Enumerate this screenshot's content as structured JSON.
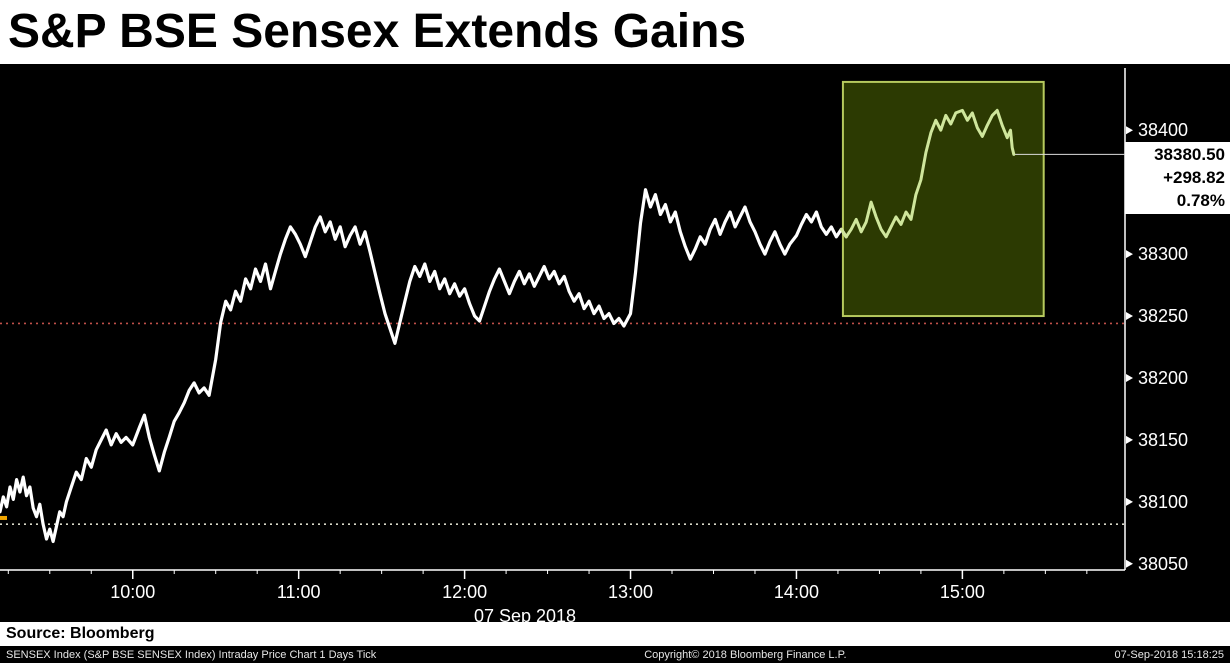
{
  "header": {
    "title": "S&P BSE Sensex Extends Gains"
  },
  "chart_data": {
    "type": "line",
    "title": "S&P BSE Sensex Extends Gains",
    "instrument": "SENSEX Index",
    "x_unit": "hour_of_day",
    "x_range": [
      9.2,
      15.98
    ],
    "y_range": [
      38045,
      38447
    ],
    "y_ticks": [
      38400,
      38300,
      38250,
      38200,
      38150,
      38100,
      38050
    ],
    "x_ticks": [
      {
        "label": "10:00",
        "h": 10
      },
      {
        "label": "11:00",
        "h": 11
      },
      {
        "label": "12:00",
        "h": 12
      },
      {
        "label": "13:00",
        "h": 13
      },
      {
        "label": "14:00",
        "h": 14
      },
      {
        "label": "15:00",
        "h": 15
      }
    ],
    "date_label": "07 Sep 2018",
    "grid": false,
    "legend": "none",
    "line_color": "#ffffff",
    "highlight_region": {
      "t0": 14.28,
      "t1": 15.49,
      "p0": 38250,
      "p1": 38439,
      "fill": "#2c3a02",
      "stroke": "#b6c95e",
      "line_color": "#cfe69c"
    },
    "reference_lines": [
      {
        "value": 38244,
        "color": "#c0504a",
        "style": "dotted"
      },
      {
        "value": 38082,
        "color": "#d8d8c8",
        "style": "dotted"
      }
    ],
    "open_marker": {
      "value": 38087,
      "color": "#f0a500"
    },
    "last_price_line": {
      "value": 38380.5,
      "color": "#dddddd"
    },
    "quote": {
      "last": "38380.50",
      "change": "+298.82",
      "pct_change": "0.78%"
    },
    "series": [
      {
        "name": "SENSEX Index Intraday Price",
        "color": "#ffffff",
        "points": [
          [
            9.2,
            38092
          ],
          [
            9.22,
            38104
          ],
          [
            9.24,
            38096
          ],
          [
            9.26,
            38112
          ],
          [
            9.28,
            38102
          ],
          [
            9.3,
            38118
          ],
          [
            9.32,
            38108
          ],
          [
            9.34,
            38120
          ],
          [
            9.36,
            38105
          ],
          [
            9.38,
            38112
          ],
          [
            9.4,
            38095
          ],
          [
            9.42,
            38088
          ],
          [
            9.44,
            38098
          ],
          [
            9.46,
            38082
          ],
          [
            9.48,
            38070
          ],
          [
            9.5,
            38078
          ],
          [
            9.52,
            38068
          ],
          [
            9.54,
            38080
          ],
          [
            9.56,
            38092
          ],
          [
            9.58,
            38088
          ],
          [
            9.6,
            38100
          ],
          [
            9.63,
            38112
          ],
          [
            9.66,
            38124
          ],
          [
            9.69,
            38118
          ],
          [
            9.72,
            38135
          ],
          [
            9.75,
            38128
          ],
          [
            9.78,
            38142
          ],
          [
            9.81,
            38150
          ],
          [
            9.84,
            38158
          ],
          [
            9.87,
            38146
          ],
          [
            9.9,
            38155
          ],
          [
            9.93,
            38148
          ],
          [
            9.96,
            38152
          ],
          [
            10.0,
            38146
          ],
          [
            10.04,
            38160
          ],
          [
            10.07,
            38170
          ],
          [
            10.1,
            38152
          ],
          [
            10.13,
            38138
          ],
          [
            10.16,
            38125
          ],
          [
            10.19,
            38140
          ],
          [
            10.22,
            38152
          ],
          [
            10.25,
            38165
          ],
          [
            10.28,
            38172
          ],
          [
            10.31,
            38180
          ],
          [
            10.34,
            38190
          ],
          [
            10.37,
            38196
          ],
          [
            10.4,
            38188
          ],
          [
            10.43,
            38192
          ],
          [
            10.46,
            38186
          ],
          [
            10.5,
            38215
          ],
          [
            10.53,
            38245
          ],
          [
            10.56,
            38262
          ],
          [
            10.59,
            38255
          ],
          [
            10.62,
            38270
          ],
          [
            10.65,
            38262
          ],
          [
            10.68,
            38280
          ],
          [
            10.71,
            38272
          ],
          [
            10.74,
            38288
          ],
          [
            10.77,
            38278
          ],
          [
            10.8,
            38292
          ],
          [
            10.83,
            38272
          ],
          [
            10.86,
            38286
          ],
          [
            10.89,
            38300
          ],
          [
            10.92,
            38312
          ],
          [
            10.95,
            38322
          ],
          [
            10.98,
            38316
          ],
          [
            11.01,
            38308
          ],
          [
            11.04,
            38298
          ],
          [
            11.07,
            38310
          ],
          [
            11.1,
            38322
          ],
          [
            11.13,
            38330
          ],
          [
            11.16,
            38318
          ],
          [
            11.19,
            38326
          ],
          [
            11.22,
            38312
          ],
          [
            11.25,
            38322
          ],
          [
            11.28,
            38306
          ],
          [
            11.31,
            38315
          ],
          [
            11.34,
            38322
          ],
          [
            11.37,
            38308
          ],
          [
            11.4,
            38318
          ],
          [
            11.43,
            38302
          ],
          [
            11.46,
            38285
          ],
          [
            11.49,
            38268
          ],
          [
            11.52,
            38252
          ],
          [
            11.55,
            38240
          ],
          [
            11.58,
            38228
          ],
          [
            11.61,
            38245
          ],
          [
            11.64,
            38262
          ],
          [
            11.67,
            38278
          ],
          [
            11.7,
            38290
          ],
          [
            11.73,
            38282
          ],
          [
            11.76,
            38292
          ],
          [
            11.79,
            38278
          ],
          [
            11.82,
            38286
          ],
          [
            11.85,
            38272
          ],
          [
            11.88,
            38280
          ],
          [
            11.91,
            38268
          ],
          [
            11.94,
            38276
          ],
          [
            11.97,
            38266
          ],
          [
            12.0,
            38272
          ],
          [
            12.03,
            38260
          ],
          [
            12.06,
            38250
          ],
          [
            12.09,
            38246
          ],
          [
            12.12,
            38258
          ],
          [
            12.15,
            38270
          ],
          [
            12.18,
            38280
          ],
          [
            12.21,
            38288
          ],
          [
            12.24,
            38278
          ],
          [
            12.27,
            38268
          ],
          [
            12.3,
            38278
          ],
          [
            12.33,
            38286
          ],
          [
            12.36,
            38276
          ],
          [
            12.39,
            38284
          ],
          [
            12.42,
            38274
          ],
          [
            12.45,
            38282
          ],
          [
            12.48,
            38290
          ],
          [
            12.51,
            38280
          ],
          [
            12.54,
            38286
          ],
          [
            12.57,
            38276
          ],
          [
            12.6,
            38282
          ],
          [
            12.63,
            38270
          ],
          [
            12.66,
            38262
          ],
          [
            12.69,
            38268
          ],
          [
            12.72,
            38256
          ],
          [
            12.75,
            38262
          ],
          [
            12.78,
            38252
          ],
          [
            12.81,
            38258
          ],
          [
            12.84,
            38248
          ],
          [
            12.87,
            38252
          ],
          [
            12.9,
            38244
          ],
          [
            12.93,
            38248
          ],
          [
            12.96,
            38242
          ],
          [
            13.0,
            38252
          ],
          [
            13.03,
            38285
          ],
          [
            13.06,
            38325
          ],
          [
            13.09,
            38352
          ],
          [
            13.12,
            38338
          ],
          [
            13.15,
            38348
          ],
          [
            13.18,
            38332
          ],
          [
            13.21,
            38340
          ],
          [
            13.24,
            38326
          ],
          [
            13.27,
            38334
          ],
          [
            13.3,
            38318
          ],
          [
            13.33,
            38306
          ],
          [
            13.36,
            38296
          ],
          [
            13.39,
            38304
          ],
          [
            13.42,
            38314
          ],
          [
            13.45,
            38308
          ],
          [
            13.48,
            38320
          ],
          [
            13.51,
            38328
          ],
          [
            13.54,
            38316
          ],
          [
            13.57,
            38326
          ],
          [
            13.6,
            38334
          ],
          [
            13.63,
            38322
          ],
          [
            13.66,
            38330
          ],
          [
            13.69,
            38338
          ],
          [
            13.72,
            38326
          ],
          [
            13.75,
            38318
          ],
          [
            13.78,
            38308
          ],
          [
            13.81,
            38300
          ],
          [
            13.84,
            38310
          ],
          [
            13.87,
            38318
          ],
          [
            13.9,
            38308
          ],
          [
            13.93,
            38300
          ],
          [
            13.96,
            38308
          ],
          [
            14.0,
            38315
          ],
          [
            14.03,
            38324
          ],
          [
            14.06,
            38332
          ],
          [
            14.09,
            38326
          ],
          [
            14.12,
            38334
          ],
          [
            14.15,
            38322
          ],
          [
            14.18,
            38316
          ],
          [
            14.21,
            38322
          ],
          [
            14.24,
            38314
          ],
          [
            14.27,
            38320
          ],
          [
            14.3,
            38314
          ],
          [
            14.33,
            38320
          ],
          [
            14.36,
            38328
          ],
          [
            14.39,
            38318
          ],
          [
            14.42,
            38326
          ],
          [
            14.45,
            38342
          ],
          [
            14.48,
            38330
          ],
          [
            14.51,
            38320
          ],
          [
            14.54,
            38314
          ],
          [
            14.57,
            38322
          ],
          [
            14.6,
            38330
          ],
          [
            14.63,
            38324
          ],
          [
            14.66,
            38334
          ],
          [
            14.69,
            38328
          ],
          [
            14.72,
            38348
          ],
          [
            14.75,
            38360
          ],
          [
            14.78,
            38382
          ],
          [
            14.81,
            38398
          ],
          [
            14.84,
            38408
          ],
          [
            14.87,
            38400
          ],
          [
            14.9,
            38412
          ],
          [
            14.93,
            38405
          ],
          [
            14.96,
            38414
          ],
          [
            15.0,
            38416
          ],
          [
            15.03,
            38408
          ],
          [
            15.06,
            38414
          ],
          [
            15.09,
            38402
          ],
          [
            15.12,
            38395
          ],
          [
            15.15,
            38404
          ],
          [
            15.18,
            38412
          ],
          [
            15.21,
            38416
          ],
          [
            15.24,
            38404
          ],
          [
            15.27,
            38394
          ],
          [
            15.29,
            38400
          ],
          [
            15.3,
            38386
          ],
          [
            15.31,
            38380.5
          ]
        ]
      }
    ]
  },
  "footer": {
    "source": "Source: Bloomberg",
    "left": "SENSEX Index (S&P BSE SENSEX Index) Intraday Price Chart 1 Days  Tick",
    "center": "Copyright© 2018 Bloomberg Finance L.P.",
    "right": "07-Sep-2018 15:18:25"
  }
}
